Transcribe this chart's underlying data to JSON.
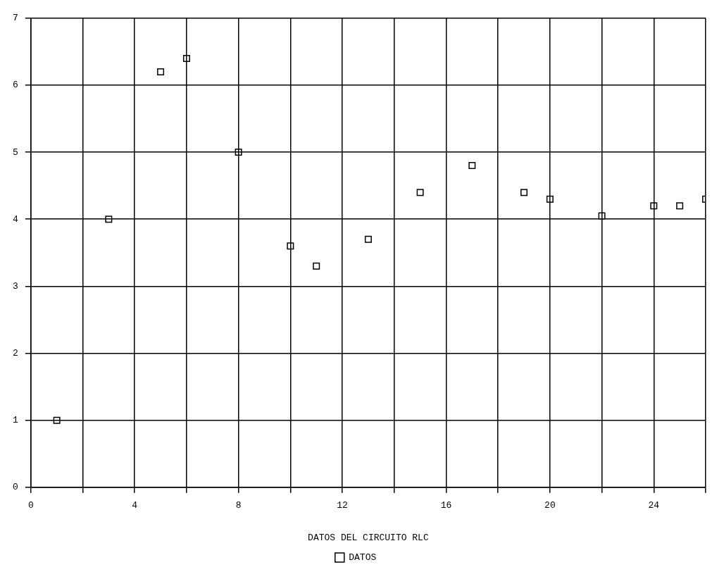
{
  "chart_data": {
    "type": "scatter",
    "xlabel": "DATOS DEL CIRCUITO RLC",
    "x": [
      1,
      3,
      5,
      6,
      8,
      10,
      11,
      13,
      15,
      17,
      19,
      20,
      22,
      24,
      25,
      26
    ],
    "series": [
      {
        "name": "DATOS",
        "color": "#000000",
        "values": [
          1,
          4,
          6.2,
          6.4,
          5,
          3.6,
          3.3,
          3.7,
          4.4,
          4.8,
          4.4,
          4.3,
          4.05,
          4.2,
          4.2,
          4.3
        ]
      }
    ],
    "xlim": [
      0,
      26
    ],
    "ylim": [
      0,
      7
    ],
    "xticks": [
      0,
      {
        "value": 2,
        "label": null
      },
      4,
      {
        "value": 6,
        "label": null
      },
      8,
      {
        "value": 10,
        "label": null
      },
      12,
      {
        "value": 14,
        "label": null
      },
      16,
      {
        "value": 18,
        "label": null
      },
      20,
      {
        "value": 22,
        "label": null
      },
      24,
      {
        "value": 26,
        "label": null
      }
    ],
    "yticks": [
      0,
      1,
      2,
      3,
      4,
      5,
      6,
      7
    ],
    "grid": true,
    "legend": "bottom",
    "marker": "square"
  }
}
